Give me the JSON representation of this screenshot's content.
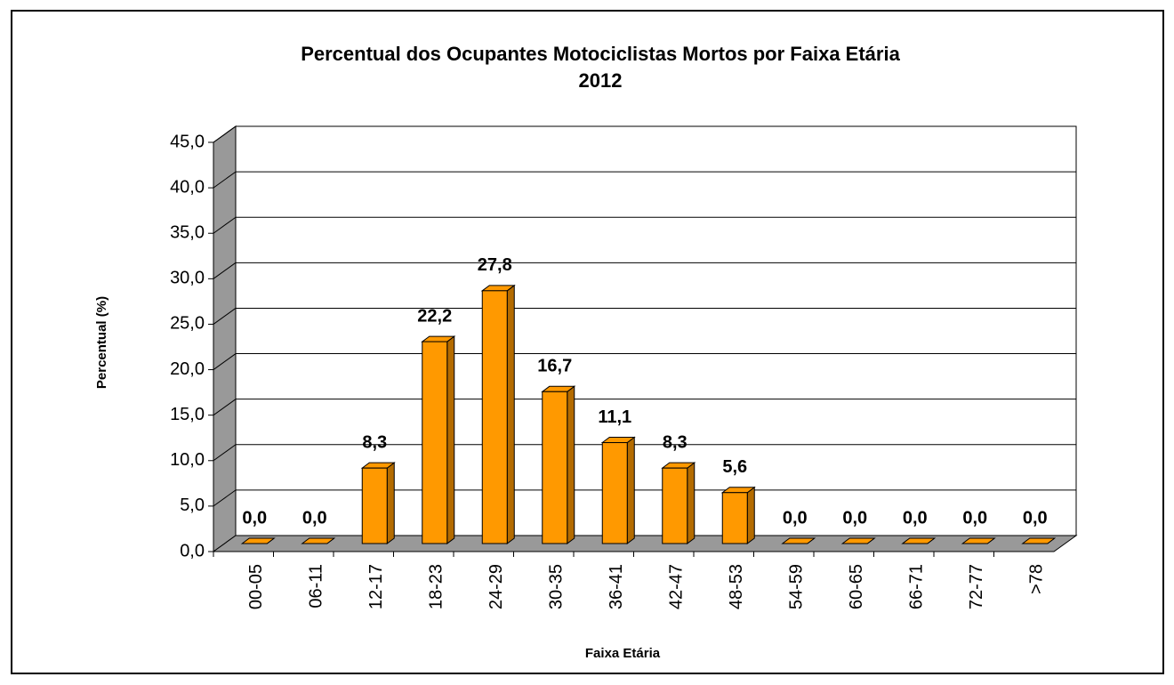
{
  "chart_data": {
    "type": "bar",
    "title": "Percentual dos Ocupantes Motociclistas Mortos por Faixa Etária",
    "subtitle": "2012",
    "x_label": "Faixa Etária",
    "y_label": "Percentual (%)",
    "categories": [
      "00-05",
      "06-11",
      "12-17",
      "18-23",
      "24-29",
      "30-35",
      "36-41",
      "42-47",
      "48-53",
      "54-59",
      "60-65",
      "66-71",
      "72-77",
      ">78"
    ],
    "values": [
      0,
      0,
      8.3,
      22.2,
      27.8,
      16.7,
      11.1,
      8.3,
      5.6,
      0,
      0,
      0,
      0,
      0
    ],
    "value_labels": [
      "0,0",
      "0,0",
      "8,3",
      "22,2",
      "27,8",
      "16,7",
      "11,1",
      "8,3",
      "5,6",
      "0,0",
      "0,0",
      "0,0",
      "0,0",
      "0,0"
    ],
    "color": "#ff9900",
    "ylim": [
      0,
      45
    ],
    "yticks": [
      {
        "value": 0,
        "label": "0,0"
      },
      {
        "value": 5,
        "label": "5,0"
      },
      {
        "value": 10,
        "label": "10,0"
      },
      {
        "value": 15,
        "label": "15,0"
      },
      {
        "value": 20,
        "label": "20,0"
      },
      {
        "value": 25,
        "label": "25,0"
      },
      {
        "value": 30,
        "label": "30,0"
      },
      {
        "value": 35,
        "label": "35,0"
      },
      {
        "value": 40,
        "label": "40,0"
      },
      {
        "value": 45,
        "label": "45,0"
      }
    ],
    "grid": true
  }
}
